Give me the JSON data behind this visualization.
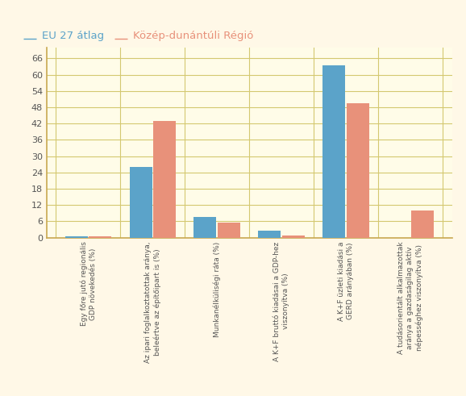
{
  "categories": [
    "Egy főre jutó regionális\nGDP növekedés (%)",
    "Az ipari foglalkoztatottak aránya,\nbeleértve az építőipart is (%)",
    "Munkanélküliségi ráta (%)",
    "A K+F bruttó kiadásai a GDP-hez\nviszonyítva (%)",
    "A K+F üzleti kiadási a\nGERD arányában (%)",
    "A tudásorientált alkalmazottak\naránya a gazdaságilag aktív\nnépességhez viszonyítva (%)"
  ],
  "eu_values": [
    0.5,
    26.0,
    7.5,
    2.5,
    63.5,
    0.0
  ],
  "region_values": [
    0.5,
    43.0,
    5.5,
    0.7,
    49.5,
    10.0
  ],
  "eu_color": "#5BA3C9",
  "region_color": "#E8917A",
  "background_color": "#FFF8E7",
  "plot_bg_color": "#FFFCE8",
  "grid_color": "#D4C870",
  "border_color": "#C8A850",
  "eu_label": "EU 27 átlag",
  "region_label": "Közép-dunántúli Régió",
  "ylim": [
    0,
    70
  ],
  "yticks": [
    0,
    6,
    12,
    18,
    24,
    30,
    36,
    42,
    48,
    54,
    60,
    66
  ],
  "bar_width": 0.35,
  "figsize": [
    5.78,
    4.91
  ],
  "dpi": 100
}
